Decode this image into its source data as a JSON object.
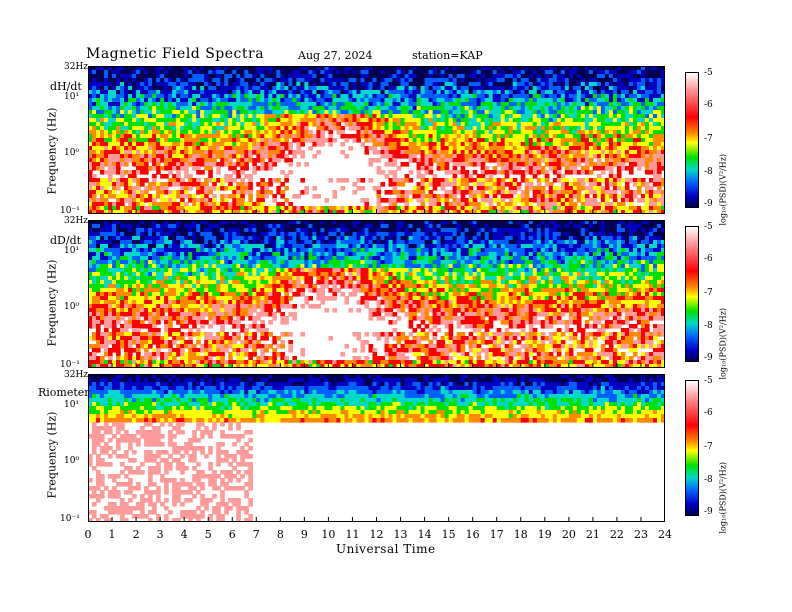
{
  "header": {
    "title": "Magnetic  Field  Spectra",
    "date": "Aug 27, 2024",
    "station": "station=KAP"
  },
  "colors": {
    "scale": [
      "#ffffff",
      "#ff9a9a",
      "#ff0000",
      "#ff8a00",
      "#ffff00",
      "#00e000",
      "#00d8c8",
      "#0060ff",
      "#0000c0",
      "#000050"
    ]
  },
  "chart_data": {
    "type": "heatmap",
    "xlabel": "Universal Time",
    "x_ticks": [
      "0",
      "1",
      "2",
      "3",
      "4",
      "5",
      "6",
      "7",
      "8",
      "9",
      "10",
      "11",
      "12",
      "13",
      "14",
      "15",
      "16",
      "17",
      "18",
      "19",
      "20",
      "21",
      "22",
      "23",
      "24"
    ],
    "xlim": [
      0,
      24
    ],
    "y_scale": "log",
    "y_ticks": [
      "32Hz",
      "10¹",
      "10⁰",
      "10⁻¹"
    ],
    "colorbar": {
      "ticks": [
        "-5",
        "-6",
        "-7",
        "-8",
        "-9"
      ],
      "range": [
        -9,
        -5
      ],
      "label": "log₁₀(PSD)(V²/Hz)"
    },
    "panels": [
      {
        "name": "dH/dt",
        "ylabel": "Frequency  (Hz)",
        "noise_level": "high"
      },
      {
        "name": "dD/dt",
        "ylabel": "Frequency  (Hz)",
        "noise_level": "high"
      },
      {
        "name": "Riometer",
        "ylabel": "Frequency  (Hz)",
        "noise_level": "low"
      }
    ]
  }
}
